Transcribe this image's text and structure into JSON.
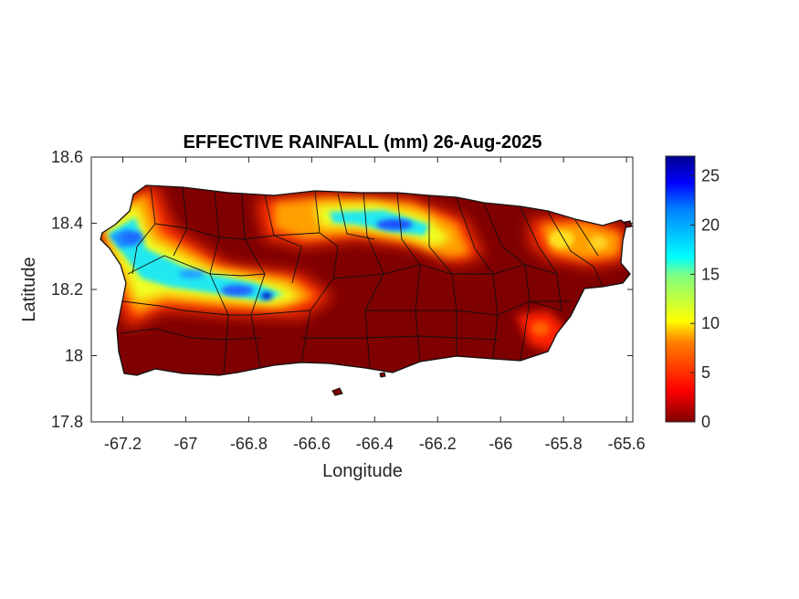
{
  "title": "EFFECTIVE RAINFALL (mm) 26-Aug-2025",
  "map": {
    "xlabel": "Longitude",
    "ylabel": "Latitude",
    "xlim": [
      -67.3,
      -65.58
    ],
    "ylim": [
      17.8,
      18.6
    ],
    "xticks": [
      "-67.2",
      "-67",
      "-66.8",
      "-66.6",
      "-66.4",
      "-66.2",
      "-66",
      "-65.8",
      "-65.6"
    ],
    "yticks": [
      "18.6",
      "18.4",
      "18.2",
      "18",
      "17.8"
    ],
    "region": "Puerto Rico municipalities",
    "background_color": "#7f0000"
  },
  "colorbar": {
    "colormap": "jet",
    "range": [
      0,
      27
    ],
    "ticks": [
      "0",
      "5",
      "10",
      "15",
      "20",
      "25"
    ]
  },
  "rain_features": [
    {
      "lon": -67.12,
      "lat": 18.36,
      "value": 20
    },
    {
      "lon": -66.95,
      "lat": 18.22,
      "value": 16
    },
    {
      "lon": -66.82,
      "lat": 18.19,
      "value": 19
    },
    {
      "lon": -66.36,
      "lat": 18.39,
      "value": 18
    },
    {
      "lon": -65.85,
      "lat": 18.34,
      "value": 8
    },
    {
      "lon": -65.9,
      "lat": 18.06,
      "value": 5
    }
  ]
}
